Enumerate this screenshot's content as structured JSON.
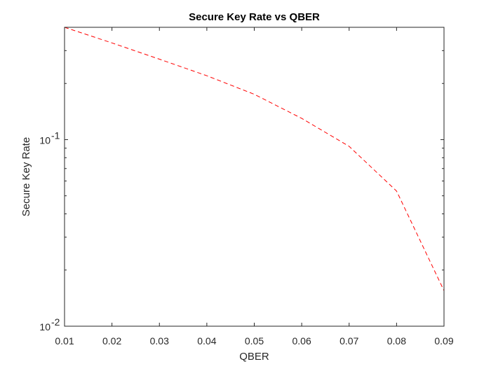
{
  "chart_data": {
    "type": "line",
    "title": "Secure Key Rate vs QBER",
    "xlabel": "QBER",
    "ylabel": "Secure Key Rate",
    "xlim": [
      0.01,
      0.09
    ],
    "ylim": [
      0.01,
      0.4
    ],
    "yscale": "log",
    "x_ticks": [
      0.01,
      0.02,
      0.03,
      0.04,
      0.05,
      0.06,
      0.07,
      0.08,
      0.09
    ],
    "x_tick_labels": [
      "0.01",
      "0.02",
      "0.03",
      "0.04",
      "0.05",
      "0.06",
      "0.07",
      "0.08",
      "0.09"
    ],
    "y_major_ticks": [
      0.01,
      0.1
    ],
    "y_tick_labels": [
      {
        "base": "10",
        "exp": "-2"
      },
      {
        "base": "10",
        "exp": "-1"
      }
    ],
    "grid": false,
    "series": [
      {
        "color": "#ff0000",
        "line_style": "dashed",
        "x": [
          0.01,
          0.02,
          0.03,
          0.04,
          0.05,
          0.06,
          0.07,
          0.08,
          0.09
        ],
        "y": [
          0.4,
          0.33,
          0.27,
          0.22,
          0.175,
          0.13,
          0.092,
          0.053,
          0.0155
        ]
      }
    ]
  }
}
